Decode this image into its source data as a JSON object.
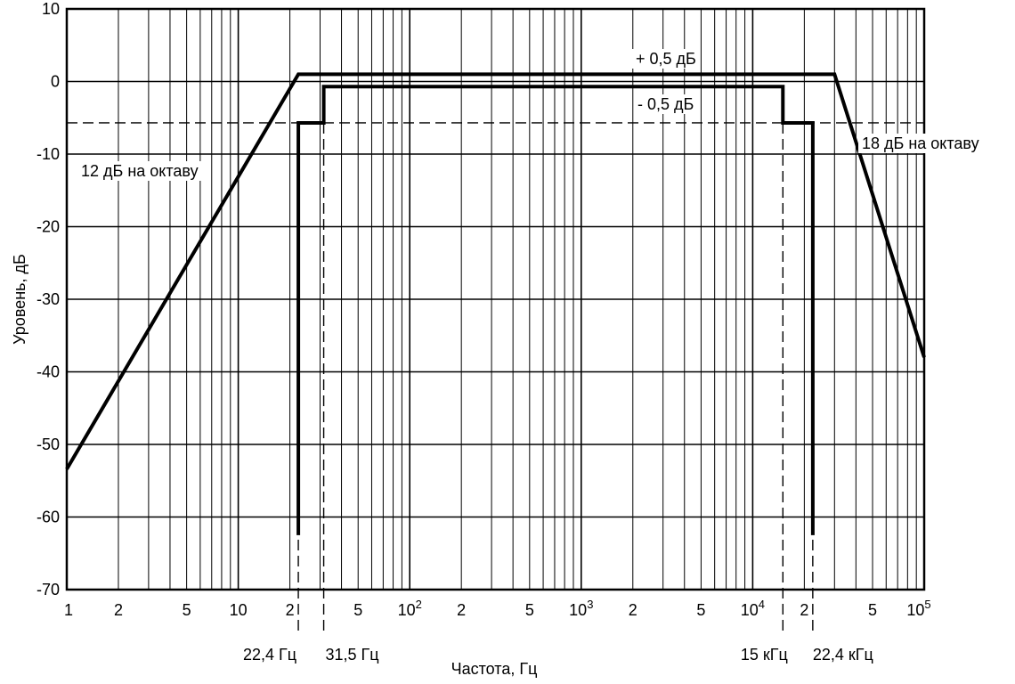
{
  "chart_data": {
    "type": "line",
    "xscale": "log",
    "xlim": [
      1,
      100000
    ],
    "ylim": [
      -70,
      10
    ],
    "grid": true,
    "xlabel": "Частота, Гц",
    "ylabel": "Уровень, дБ",
    "y_ticks": [
      "10",
      "0",
      "-10",
      "-20",
      "-30",
      "-40",
      "-50",
      "-60",
      "-70"
    ],
    "x_tick_labels": [
      {
        "x": 1,
        "label": "1"
      },
      {
        "x": 2,
        "label": "2"
      },
      {
        "x": 5,
        "label": "5"
      },
      {
        "x": 10,
        "label": "10"
      },
      {
        "x": 20,
        "label": "2"
      },
      {
        "x": 50,
        "label": "5"
      },
      {
        "x": 100,
        "label": "10",
        "exp": "2"
      },
      {
        "x": 200,
        "label": "2"
      },
      {
        "x": 500,
        "label": "5"
      },
      {
        "x": 1000,
        "label": "10",
        "exp": "3"
      },
      {
        "x": 2000,
        "label": "2"
      },
      {
        "x": 5000,
        "label": "5"
      },
      {
        "x": 10000,
        "label": "10",
        "exp": "4"
      },
      {
        "x": 20000,
        "label": "2"
      },
      {
        "x": 50000,
        "label": "5"
      },
      {
        "x": 100000,
        "label": "10",
        "exp": "5"
      }
    ],
    "series": [
      {
        "style": "solid",
        "points": [
          [
            1,
            -53.4
          ],
          [
            22.4,
            1
          ],
          [
            40,
            1
          ],
          [
            40,
            1
          ],
          [
            30000,
            1
          ],
          [
            100000,
            -38
          ]
        ]
      },
      {
        "style": "solid",
        "points": [
          [
            22.4,
            -62.5
          ],
          [
            22.4,
            -5.7
          ],
          [
            31.5,
            -5.7
          ],
          [
            31.5,
            -0.7
          ],
          [
            15000,
            -0.7
          ],
          [
            15000,
            -5.7
          ],
          [
            22400,
            -5.7
          ],
          [
            22400,
            -62.5
          ]
        ]
      }
    ],
    "reference_lines": [
      {
        "orientation": "horizontal",
        "y": -5.7,
        "style": "dashed"
      },
      {
        "orientation": "vertical",
        "x": 22.4,
        "style": "dashed"
      },
      {
        "orientation": "vertical",
        "x": 31.5,
        "style": "dashed"
      },
      {
        "orientation": "vertical",
        "x": 15000,
        "style": "dashed"
      },
      {
        "orientation": "vertical",
        "x": 22400,
        "style": "dashed"
      }
    ],
    "annotations": {
      "upper": "+ 0,5 дБ",
      "lower": "- 0,5 дБ",
      "slope_left": "12 дБ на октаву",
      "slope_right": "18 дБ на октаву",
      "f1": "22,4 Гц",
      "f2": "31,5 Гц",
      "f3": "15 кГц",
      "f4": "22,4 кГц"
    }
  }
}
